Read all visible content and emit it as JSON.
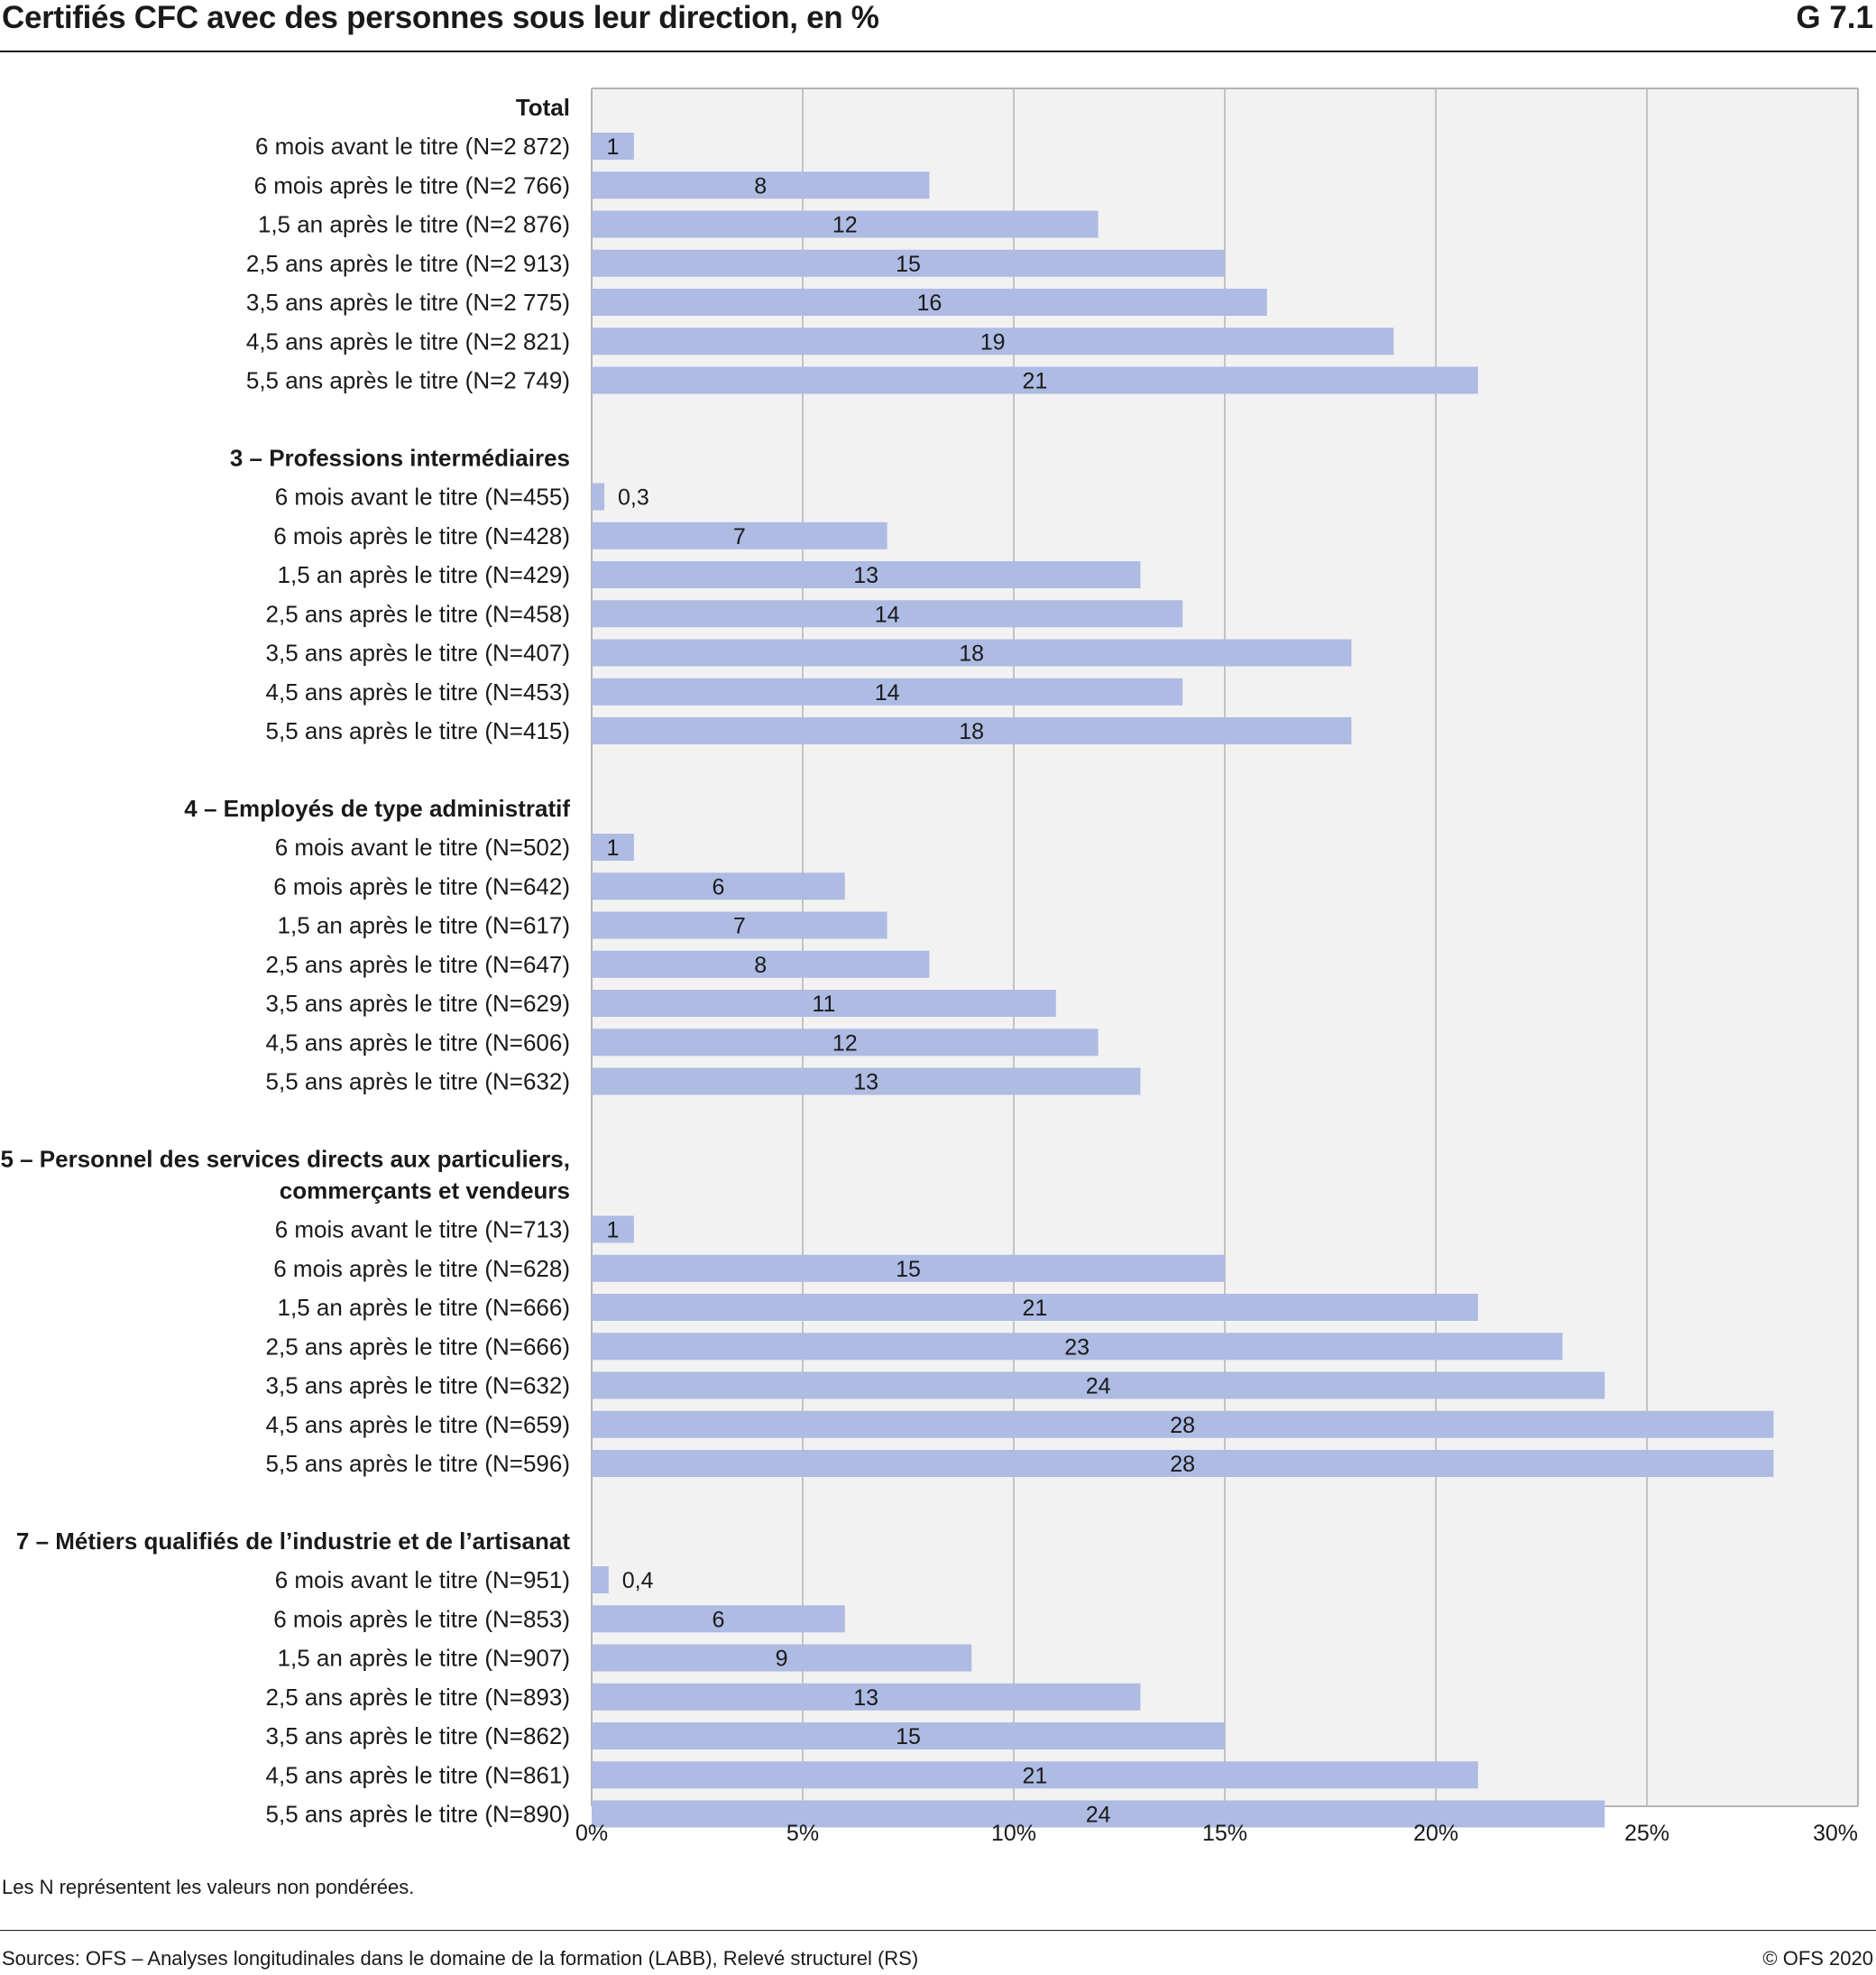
{
  "header": {
    "title": "Certifiés CFC avec des personnes sous leur direction, en %",
    "figure_code": "G 7.1"
  },
  "footer": {
    "note": "Les N représentent les valeurs non pondérées.",
    "source": "Sources: OFS – Analyses longitudinales dans le domaine de la formation (LABB), Relevé structurel (RS)",
    "copyright": "© OFS 2020"
  },
  "colors": {
    "bar": "#aebbe3",
    "plot_background": "#f2f2f2",
    "grid": "#b3b3b3",
    "text": "#1a1a1a"
  },
  "chart_data": {
    "type": "bar",
    "orientation": "horizontal",
    "title": "Certifiés CFC avec des personnes sous leur direction, en %",
    "xlim": [
      0,
      30
    ],
    "x_ticks": [
      0,
      5,
      10,
      15,
      20,
      25,
      30
    ],
    "x_tick_labels": [
      "0%",
      "5%",
      "10%",
      "15%",
      "20%",
      "25%",
      "30%"
    ],
    "grid": true,
    "groups": [
      {
        "name_lines": [
          "Total"
        ],
        "categories": [
          "6 mois avant le titre (N=2 872)",
          "6 mois après le titre (N=2 766)",
          "1,5 an après le titre (N=2 876)",
          "2,5 ans après le titre (N=2 913)",
          "3,5 ans après le titre (N=2 775)",
          "4,5 ans après le titre (N=2 821)",
          "5,5 ans après le titre (N=2 749)"
        ],
        "values": [
          1,
          8,
          12,
          15,
          16,
          19,
          21
        ],
        "labels": [
          "1",
          "8",
          "12",
          "15",
          "16",
          "19",
          "21"
        ]
      },
      {
        "name_lines": [
          "3 – Professions intermédiaires"
        ],
        "categories": [
          "6 mois avant le titre (N=455)",
          "6 mois après le titre (N=428)",
          "1,5 an après le titre (N=429)",
          "2,5 ans après le titre (N=458)",
          "3,5 ans après le titre (N=407)",
          "4,5 ans après le titre (N=453)",
          "5,5 ans après le titre (N=415)"
        ],
        "values": [
          0.3,
          7,
          13,
          14,
          18,
          14,
          18
        ],
        "labels": [
          "0,3",
          "7",
          "13",
          "14",
          "18",
          "14",
          "18"
        ]
      },
      {
        "name_lines": [
          "4 – Employés de type administratif"
        ],
        "categories": [
          "6 mois avant le titre (N=502)",
          "6 mois après le titre (N=642)",
          "1,5 an après le titre (N=617)",
          "2,5 ans après le titre (N=647)",
          "3,5 ans après le titre (N=629)",
          "4,5 ans après le titre (N=606)",
          "5,5 ans après le titre (N=632)"
        ],
        "values": [
          1,
          6,
          7,
          8,
          11,
          12,
          13
        ],
        "labels": [
          "1",
          "6",
          "7",
          "8",
          "11",
          "12",
          "13"
        ]
      },
      {
        "name_lines": [
          "5 – Personnel des services directs aux particuliers,",
          "commerçants et vendeurs"
        ],
        "categories": [
          "6 mois avant le titre (N=713)",
          "6 mois après le titre (N=628)",
          "1,5 an après le titre (N=666)",
          "2,5 ans après le titre (N=666)",
          "3,5 ans après le titre (N=632)",
          "4,5 ans après le titre (N=659)",
          "5,5 ans après le titre (N=596)"
        ],
        "values": [
          1,
          15,
          21,
          23,
          24,
          28,
          28
        ],
        "labels": [
          "1",
          "15",
          "21",
          "23",
          "24",
          "28",
          "28"
        ]
      },
      {
        "name_lines": [
          "7 – Métiers qualifiés de l’industrie et de l’artisanat"
        ],
        "categories": [
          "6 mois avant le titre (N=951)",
          "6 mois après le titre (N=853)",
          "1,5 an après le titre (N=907)",
          "2,5 ans après le titre (N=893)",
          "3,5 ans après le titre (N=862)",
          "4,5 ans après le titre (N=861)",
          "5,5 ans après le titre (N=890)"
        ],
        "values": [
          0.4,
          6,
          9,
          13,
          15,
          21,
          24
        ],
        "labels": [
          "0,4",
          "6",
          "9",
          "13",
          "15",
          "21",
          "24"
        ]
      }
    ]
  }
}
